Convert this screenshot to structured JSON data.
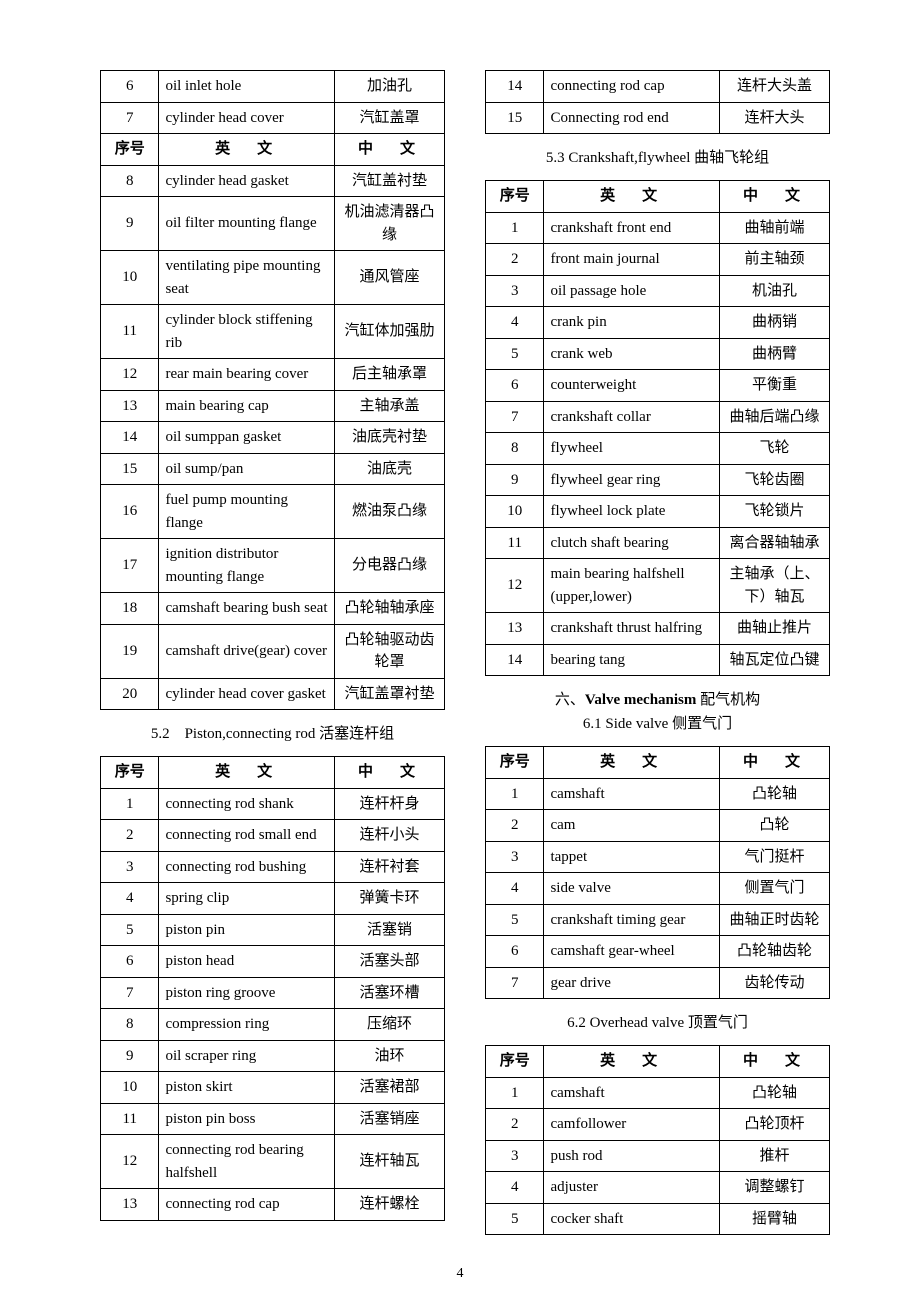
{
  "headers": {
    "num": "序号",
    "eng": "英　文",
    "chi": "中　文"
  },
  "left": {
    "table1": {
      "pre_rows": [
        {
          "n": "6",
          "e": "oil inlet hole",
          "c": "加油孔"
        },
        {
          "n": "7",
          "e": "cylinder head cover",
          "c": "汽缸盖罩"
        }
      ],
      "post_rows": [
        {
          "n": "8",
          "e": "cylinder head gasket",
          "c": "汽缸盖衬垫"
        },
        {
          "n": "9",
          "e": "oil filter mounting flange",
          "c": "机油滤清器凸缘"
        },
        {
          "n": "10",
          "e": "ventilating pipe mounting seat",
          "c": "通风管座"
        },
        {
          "n": "11",
          "e": "cylinder block stiffening rib",
          "c": "汽缸体加强肋"
        },
        {
          "n": "12",
          "e": "rear main bearing cover",
          "c": "后主轴承罩"
        },
        {
          "n": "13",
          "e": "main bearing cap",
          "c": "主轴承盖"
        },
        {
          "n": "14",
          "e": "oil sumppan gasket",
          "c": "油底壳衬垫"
        },
        {
          "n": "15",
          "e": "oil sump/pan",
          "c": "油底壳"
        },
        {
          "n": "16",
          "e": "fuel pump mounting flange",
          "c": "燃油泵凸缘"
        },
        {
          "n": "17",
          "e": "ignition distributor mounting flange",
          "c": "分电器凸缘"
        },
        {
          "n": "18",
          "e": "camshaft bearing bush seat",
          "c": "凸轮轴轴承座"
        },
        {
          "n": "19",
          "e": "camshaft drive(gear) cover",
          "c": "凸轮轴驱动齿轮罩"
        },
        {
          "n": "20",
          "e": "cylinder head cover gasket",
          "c": "汽缸盖罩衬垫"
        }
      ]
    },
    "section52": {
      "title": "5.2　Piston,connecting rod  活塞连杆组"
    },
    "table2": {
      "rows": [
        {
          "n": "1",
          "e": "connecting rod shank",
          "c": "连杆杆身"
        },
        {
          "n": "2",
          "e": "connecting rod small end",
          "c": "连杆小头"
        },
        {
          "n": "3",
          "e": "connecting rod bushing",
          "c": "连杆衬套"
        },
        {
          "n": "4",
          "e": "spring clip",
          "c": "弹簧卡环"
        },
        {
          "n": "5",
          "e": "piston pin",
          "c": "活塞销"
        },
        {
          "n": "6",
          "e": "piston head",
          "c": "活塞头部"
        },
        {
          "n": "7",
          "e": "piston ring groove",
          "c": "活塞环槽"
        },
        {
          "n": "8",
          "e": "compression ring",
          "c": "压缩环"
        },
        {
          "n": "9",
          "e": "oil scraper ring",
          "c": "油环"
        },
        {
          "n": "10",
          "e": "piston skirt",
          "c": "活塞裙部"
        },
        {
          "n": "11",
          "e": "piston pin boss",
          "c": "活塞销座"
        },
        {
          "n": "12",
          "e": "connecting rod bearing halfshell",
          "c": "连杆轴瓦"
        },
        {
          "n": "13",
          "e": "connecting rod cap",
          "c": "连杆螺栓"
        }
      ]
    }
  },
  "right": {
    "table3": {
      "rows": [
        {
          "n": "14",
          "e": "connecting rod cap",
          "c": "连杆大头盖"
        },
        {
          "n": "15",
          "e": "Connecting rod end",
          "c": "连杆大头"
        }
      ]
    },
    "section53": {
      "title": "5.3 Crankshaft,flywheel  曲轴飞轮组"
    },
    "table4": {
      "rows": [
        {
          "n": "1",
          "e": "crankshaft front end",
          "c": "曲轴前端"
        },
        {
          "n": "2",
          "e": "front main journal",
          "c": "前主轴颈"
        },
        {
          "n": "3",
          "e": "oil passage hole",
          "c": "机油孔"
        },
        {
          "n": "4",
          "e": "crank pin",
          "c": "曲柄销"
        },
        {
          "n": "5",
          "e": "crank web",
          "c": "曲柄臂"
        },
        {
          "n": "6",
          "e": "counterweight",
          "c": "平衡重"
        },
        {
          "n": "7",
          "e": "crankshaft collar",
          "c": "曲轴后端凸缘"
        },
        {
          "n": "8",
          "e": "flywheel",
          "c": "飞轮"
        },
        {
          "n": "9",
          "e": "flywheel gear ring",
          "c": "飞轮齿圈"
        },
        {
          "n": "10",
          "e": "flywheel lock plate",
          "c": "飞轮锁片"
        },
        {
          "n": "11",
          "e": "clutch shaft bearing",
          "c": "离合器轴轴承"
        },
        {
          "n": "12",
          "e": "main bearing halfshell (upper,lower)",
          "c": "主轴承（上、下）轴瓦"
        },
        {
          "n": "13",
          "e": "crankshaft thrust halfring",
          "c": "曲轴止推片"
        },
        {
          "n": "14",
          "e": "bearing tang",
          "c": "轴瓦定位凸键"
        }
      ]
    },
    "section6": {
      "line1_pre": "六、",
      "line1_bold": "Valve mechanism",
      "line1_post": "  配气机构",
      "line2": "6.1 Side valve  侧置气门"
    },
    "table5": {
      "rows": [
        {
          "n": "1",
          "e": "camshaft",
          "c": "凸轮轴"
        },
        {
          "n": "2",
          "e": "cam",
          "c": "凸轮"
        },
        {
          "n": "3",
          "e": "tappet",
          "c": "气门挺杆"
        },
        {
          "n": "4",
          "e": "side valve",
          "c": "侧置气门"
        },
        {
          "n": "5",
          "e": "crankshaft timing gear",
          "c": "曲轴正时齿轮"
        },
        {
          "n": "6",
          "e": "camshaft gear-wheel",
          "c": "凸轮轴齿轮"
        },
        {
          "n": "7",
          "e": "gear drive",
          "c": "齿轮传动"
        }
      ]
    },
    "section62": {
      "title": "6.2 Overhead valve  顶置气门"
    },
    "table6": {
      "rows": [
        {
          "n": "1",
          "e": "camshaft",
          "c": "凸轮轴"
        },
        {
          "n": "2",
          "e": "camfollower",
          "c": "凸轮顶杆"
        },
        {
          "n": "3",
          "e": "push rod",
          "c": "推杆"
        },
        {
          "n": "4",
          "e": "adjuster",
          "c": "调整螺钉"
        },
        {
          "n": "5",
          "e": "cocker shaft",
          "c": "摇臂轴"
        }
      ]
    }
  },
  "page_number": "4"
}
